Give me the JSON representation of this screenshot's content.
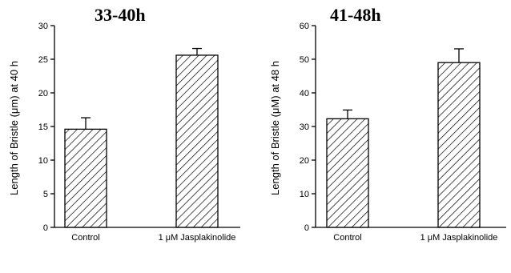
{
  "chart_data": [
    {
      "type": "bar",
      "title": "33-40h",
      "ylabel": "Length of Bristle (μm) at 40 h",
      "xlabel": "",
      "categories": [
        "Control",
        "1 μM Jasplakinolide"
      ],
      "values": [
        14.6,
        25.6
      ],
      "errors": [
        1.7,
        1.0
      ],
      "ylim": [
        0,
        30
      ],
      "yticks": [
        0,
        5,
        10,
        15,
        20,
        25,
        30
      ],
      "grid": false,
      "pattern": "diagonal-hatch"
    },
    {
      "type": "bar",
      "title": "41-48h",
      "ylabel": "Length of Bristle (μM) at 48 h",
      "xlabel": "",
      "categories": [
        "Control",
        "1 μM Jasplakinolide"
      ],
      "values": [
        32.3,
        49.0
      ],
      "errors": [
        2.6,
        4.1
      ],
      "ylim": [
        0,
        60
      ],
      "yticks": [
        0,
        10,
        20,
        30,
        40,
        50,
        60
      ],
      "grid": false,
      "pattern": "diagonal-hatch"
    }
  ]
}
